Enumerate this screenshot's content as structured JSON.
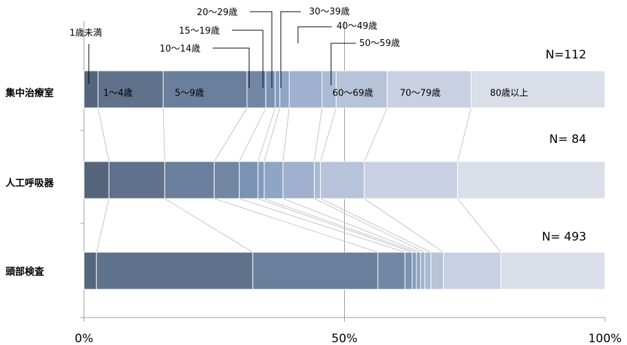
{
  "chart_data": {
    "type": "bar",
    "orientation": "horizontal",
    "stacked": "percent",
    "categories": [
      "集中治療室",
      "人工呼吸器",
      "頭部検査"
    ],
    "n_labels": [
      "N=112",
      "N=  84",
      "N= 493"
    ],
    "series": [
      {
        "name": "1歳未満",
        "values": [
          2.7,
          4.8,
          2.4
        ]
      },
      {
        "name": "1～4歳",
        "values": [
          12.5,
          10.7,
          30.0
        ]
      },
      {
        "name": "5～9歳",
        "values": [
          16.1,
          9.5,
          24.0
        ]
      },
      {
        "name": "10～14歳",
        "values": [
          3.6,
          4.8,
          5.2
        ]
      },
      {
        "name": "15～19歳",
        "values": [
          1.8,
          3.6,
          1.4
        ]
      },
      {
        "name": "20～29歳",
        "values": [
          0.9,
          1.2,
          0.8
        ]
      },
      {
        "name": "30～39歳",
        "values": [
          1.8,
          3.6,
          0.8
        ]
      },
      {
        "name": "40～49歳",
        "values": [
          6.3,
          6.0,
          0.8
        ]
      },
      {
        "name": "50～59歳",
        "values": [
          2.7,
          1.2,
          1.2
        ]
      },
      {
        "name": "60～69歳",
        "values": [
          9.8,
          8.4,
          2.4
        ]
      },
      {
        "name": "70～79歳",
        "values": [
          16.1,
          17.9,
          11.0
        ]
      },
      {
        "name": "80歳以上",
        "values": [
          25.7,
          28.3,
          20.0
        ]
      }
    ],
    "colors": [
      "#55657c",
      "#5f718b",
      "#6a7f9b",
      "#7187a4",
      "#7b93b3",
      "#849cbc",
      "#8ea5c6",
      "#9fb1ce",
      "#aabbd5",
      "#b7c3d8",
      "#c9d0e3",
      "#d9dee9"
    ],
    "xticks": [
      "0%",
      "50%",
      "100%"
    ],
    "xlim": [
      0,
      100
    ],
    "in_bar_labels": [
      "1～4歳",
      "5～9歳",
      "60～69歳",
      "70～79歳",
      "80歳以上"
    ],
    "callout_labels": [
      "1歳未満",
      "10～14歳",
      "15～19歳",
      "20～29歳",
      "30～39歳",
      "40～49歳",
      "50～59歳"
    ],
    "gridline_x": 50
  }
}
